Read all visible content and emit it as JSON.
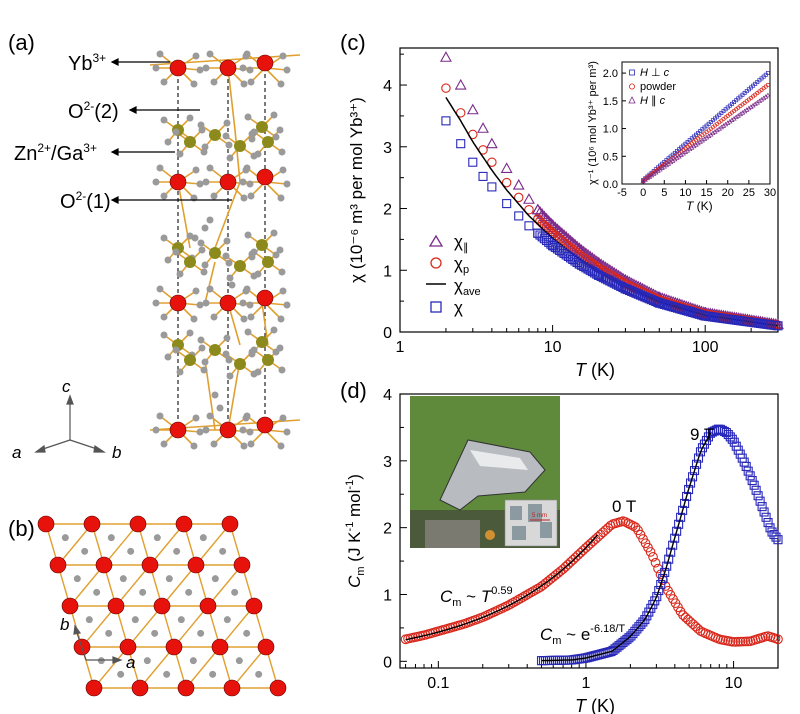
{
  "figure": {
    "panels": {
      "a": "(a)",
      "b": "(b)",
      "c": "(c)",
      "d": "(d)"
    },
    "structure": {
      "labels": [
        "Yb",
        "O",
        "Zn",
        "O"
      ],
      "label_sups": [
        "3+",
        "2-",
        "2+",
        "2-"
      ],
      "label_tails": [
        "",
        "(2)",
        "/Ga",
        "(1)"
      ],
      "label_tail_sups": [
        "",
        "",
        "3+",
        ""
      ],
      "axes_a": [
        "c",
        "a",
        "b"
      ],
      "axes_b": [
        "b",
        "a"
      ]
    },
    "colors": {
      "yb_atom": "#e8120c",
      "zn_atom": "#8c8a1c",
      "o_atom": "#9a9a9a",
      "bond": "#e0a030",
      "parallel": "#7a2a8a",
      "powder": "#d8281c",
      "perp": "#2828b8"
    }
  },
  "chart_data": [
    {
      "type": "scatter",
      "panel": "(c)",
      "xscale": "log",
      "xlim": [
        1,
        300
      ],
      "ylim": [
        0,
        4.6
      ],
      "xticks": [
        "1",
        "10",
        "100"
      ],
      "yticks": [
        "0",
        "1",
        "2",
        "3",
        "4"
      ],
      "xlabel_var": "T",
      "xlabel_unit": " (K)",
      "ylabel": "χ (10⁻⁶ m³ per mol Yb³⁺)",
      "legend_position": "left",
      "series": [
        {
          "name": "χ∥",
          "marker": "triangle",
          "x": [
            2,
            2.5,
            3,
            3.5,
            4,
            5,
            6,
            7,
            8,
            10,
            15,
            20,
            30,
            50,
            100,
            300
          ],
          "y": [
            4.45,
            4.0,
            3.6,
            3.3,
            3.05,
            2.65,
            2.38,
            2.15,
            1.98,
            1.73,
            1.35,
            1.12,
            0.84,
            0.56,
            0.31,
            0.12
          ]
        },
        {
          "name": "χp",
          "marker": "circle",
          "x": [
            2,
            2.5,
            3,
            3.5,
            4,
            5,
            6,
            7,
            8,
            10,
            15,
            20,
            30,
            50,
            100,
            300
          ],
          "y": [
            3.95,
            3.55,
            3.2,
            2.95,
            2.75,
            2.42,
            2.18,
            1.98,
            1.83,
            1.6,
            1.25,
            1.04,
            0.78,
            0.52,
            0.29,
            0.11
          ]
        },
        {
          "name": "χave",
          "marker": "line",
          "x": [
            2,
            2.5,
            3,
            4,
            5,
            7,
            10,
            15,
            20,
            30,
            50,
            100,
            300
          ],
          "y": [
            3.8,
            3.42,
            3.08,
            2.62,
            2.3,
            1.88,
            1.52,
            1.18,
            0.98,
            0.74,
            0.49,
            0.27,
            0.1
          ]
        },
        {
          "name": "χ",
          "marker": "square",
          "x": [
            2,
            2.5,
            3,
            3.5,
            4,
            5,
            6,
            7,
            8,
            10,
            15,
            20,
            30,
            50,
            100,
            300
          ],
          "y": [
            3.42,
            3.05,
            2.75,
            2.52,
            2.35,
            2.08,
            1.88,
            1.72,
            1.6,
            1.4,
            1.1,
            0.92,
            0.7,
            0.47,
            0.26,
            0.1
          ]
        }
      ],
      "legend": [
        {
          "sym": "χ",
          "sub": "∥"
        },
        {
          "sym": "χ",
          "sub": "p"
        },
        {
          "sym": "χ",
          "sub": "ave"
        },
        {
          "sym": "χ",
          "sub": ""
        }
      ],
      "inset": {
        "xlim": [
          -5,
          30
        ],
        "ylim": [
          0,
          2.2
        ],
        "xticks": [
          "-5",
          "0",
          "5",
          "10",
          "15",
          "20",
          "25",
          "30"
        ],
        "yticks": [
          "0.0",
          "0.5",
          "1.0",
          "1.5",
          "2.0"
        ],
        "xlabel_var": "T",
        "xlabel_unit": " (K)",
        "ylabel": "χ⁻¹ (10⁶ mol Yb³⁺ per m³)",
        "legend": [
          {
            "var": "H",
            "rel": " ⊥ ",
            "var2": "c"
          },
          {
            "var": "powder",
            "rel": "",
            "var2": ""
          },
          {
            "var": "H",
            "rel": " ∥ ",
            "var2": "c"
          }
        ],
        "series": [
          {
            "name": "H ⊥ c",
            "slope": 0.0655,
            "intercept": 0.07
          },
          {
            "name": "powder",
            "slope": 0.0585,
            "intercept": 0.06
          },
          {
            "name": "H ∥ c",
            "slope": 0.0525,
            "intercept": 0.05
          }
        ]
      }
    },
    {
      "type": "scatter",
      "panel": "(d)",
      "xscale": "log",
      "xlim": [
        0.055,
        20
      ],
      "ylim": [
        -0.1,
        4
      ],
      "xticks": [
        "0.1",
        "1",
        "10"
      ],
      "yticks": [
        "0",
        "1",
        "2",
        "3",
        "4"
      ],
      "xlabel_var": "T",
      "xlabel_unit": " (K)",
      "ylabel_var": "C",
      "ylabel_sub": "m",
      "ylabel_unit": " (J K",
      "ylabel_sup1": "-1",
      "ylabel_unit2": " mol",
      "ylabel_sup2": "-1",
      "ylabel_close": ")",
      "series": [
        {
          "name": "0 T",
          "marker": "circle",
          "x": [
            0.06,
            0.08,
            0.1,
            0.15,
            0.2,
            0.3,
            0.5,
            0.7,
            1.0,
            1.5,
            1.8,
            2.2,
            2.8,
            3.5,
            4.5,
            6,
            8,
            10,
            13,
            17,
            20
          ],
          "y": [
            0.33,
            0.39,
            0.45,
            0.56,
            0.66,
            0.84,
            1.12,
            1.38,
            1.7,
            2.05,
            2.1,
            2.0,
            1.6,
            1.1,
            0.7,
            0.45,
            0.33,
            0.29,
            0.3,
            0.38,
            0.33
          ]
        },
        {
          "name": "9 T",
          "marker": "square",
          "x": [
            0.5,
            0.8,
            1.0,
            1.5,
            2.0,
            2.5,
            3.0,
            3.5,
            4.0,
            5.0,
            6.0,
            7.0,
            8.0,
            9.0,
            10,
            12,
            14,
            16,
            18,
            20
          ],
          "y": [
            0.01,
            0.02,
            0.05,
            0.15,
            0.37,
            0.62,
            0.95,
            1.4,
            1.85,
            2.6,
            3.15,
            3.42,
            3.48,
            3.42,
            3.3,
            2.95,
            2.6,
            2.25,
            1.95,
            1.82
          ]
        }
      ],
      "annotations": {
        "zero_t": "0 T",
        "nine_t": "9 T",
        "fit1_var": "C",
        "fit1_sub": "m",
        "fit1_rel": " ~ ",
        "fit1_base": "T",
        "fit1_exp": "0.59",
        "fit2_var": "C",
        "fit2_sub": "m",
        "fit2_rel": " ~ e",
        "fit2_exp": "-6.18/T",
        "scale_bar": "5 mm"
      }
    }
  ]
}
